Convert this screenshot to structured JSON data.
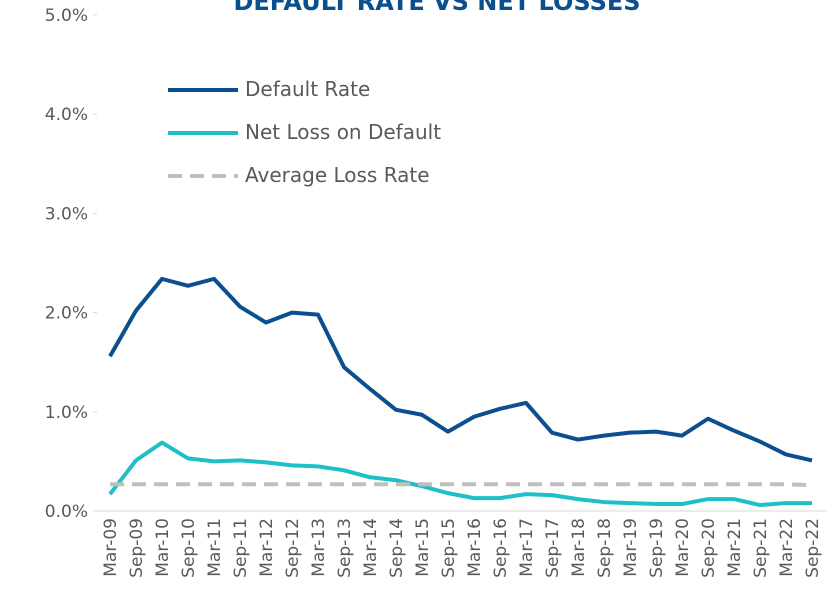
{
  "chart_data": {
    "type": "line",
    "title": "DEFAULT RATE VS NET LOSSES",
    "categories": [
      "Mar-09",
      "Sep-09",
      "Mar-10",
      "Sep-10",
      "Mar-11",
      "Sep-11",
      "Mar-12",
      "Sep-12",
      "Mar-13",
      "Sep-13",
      "Mar-14",
      "Sep-14",
      "Mar-15",
      "Sep-15",
      "Mar-16",
      "Sep-16",
      "Mar-17",
      "Sep-17",
      "Mar-18",
      "Sep-18",
      "Mar-19",
      "Sep-19",
      "Mar-20",
      "Sep-20",
      "Mar-21",
      "Sep-21",
      "Mar-22",
      "Sep-22"
    ],
    "series": [
      {
        "name": "Default Rate",
        "color": "#0b4f8f",
        "style": "solid",
        "values": [
          1.56,
          2.02,
          2.34,
          2.27,
          2.34,
          2.06,
          1.9,
          2.0,
          1.98,
          1.45,
          1.23,
          1.02,
          0.97,
          0.8,
          0.95,
          1.03,
          1.09,
          0.79,
          0.72,
          0.76,
          0.79,
          0.8,
          0.76,
          0.93,
          0.81,
          0.7,
          0.57,
          0.51
        ]
      },
      {
        "name": "Net Loss on Default",
        "color": "#1fbfc8",
        "style": "solid",
        "values": [
          0.17,
          0.51,
          0.69,
          0.53,
          0.5,
          0.51,
          0.49,
          0.46,
          0.45,
          0.41,
          0.34,
          0.31,
          0.25,
          0.18,
          0.13,
          0.13,
          0.17,
          0.16,
          0.12,
          0.09,
          0.08,
          0.07,
          0.07,
          0.12,
          0.12,
          0.06,
          0.08,
          0.08
        ]
      },
      {
        "name": "Average Loss Rate",
        "color": "#bfbfbf",
        "style": "dashed",
        "values": [
          0.27,
          0.27,
          0.27,
          0.27,
          0.27,
          0.27,
          0.27,
          0.27,
          0.27,
          0.27,
          0.27,
          0.27,
          0.27,
          0.27,
          0.27,
          0.27,
          0.27,
          0.27,
          0.27,
          0.27,
          0.27,
          0.27,
          0.27,
          0.27,
          0.27,
          0.27,
          0.27,
          0.26
        ]
      }
    ],
    "ylim": [
      0,
      5
    ],
    "yticks": [
      {
        "value": 0,
        "label": "0.0%"
      },
      {
        "value": 1,
        "label": "1.0%"
      },
      {
        "value": 2,
        "label": "2.0%"
      },
      {
        "value": 3,
        "label": "3.0%"
      },
      {
        "value": 4,
        "label": "4.0%"
      },
      {
        "value": 5,
        "label": "5.0%"
      }
    ],
    "grid": false,
    "legend": "upper-left"
  }
}
